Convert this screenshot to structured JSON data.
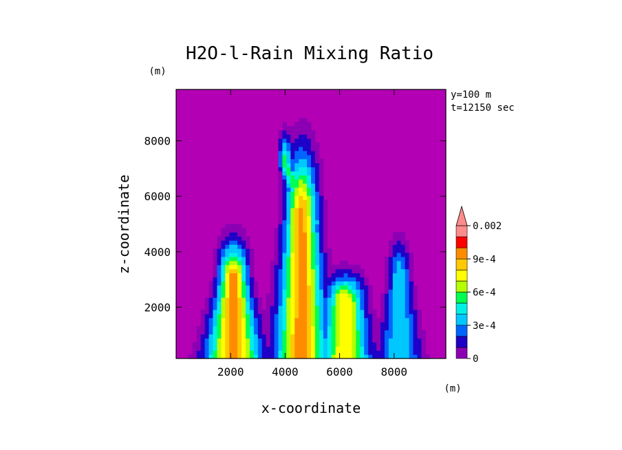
{
  "chart_data": {
    "type": "heatmap",
    "title": "H2O-l-Rain Mixing Ratio",
    "xlabel": "x-coordinate",
    "ylabel": "z-coordinate",
    "x_unit": "(m)",
    "y_unit": "(m)",
    "annotation_lines": [
      "y=100 m",
      "t=12150 sec"
    ],
    "xlim": [
      0,
      9900
    ],
    "ylim": [
      150,
      9850
    ],
    "x_ticks": [
      2000,
      4000,
      6000,
      8000
    ],
    "x_tick_labels": [
      "2000",
      "4000",
      "6000",
      "8000"
    ],
    "y_ticks": [
      2000,
      4000,
      6000,
      8000
    ],
    "y_tick_labels": [
      "2000",
      "4000",
      "6000",
      "8000"
    ],
    "colorbar": {
      "levels": [
        0,
        0.0001,
        0.0002,
        0.0003,
        0.0004,
        0.0005,
        0.0006,
        0.0007,
        0.0008,
        0.0009,
        0.001,
        0.002
      ],
      "tick_values": [
        0,
        0.0003,
        0.0006,
        0.0009,
        0.002
      ],
      "tick_labels": [
        "0",
        "3e-4",
        "6e-4",
        "9e-4",
        "0.002"
      ],
      "colors": [
        "#8c00b4",
        "#1e00c8",
        "#0064ff",
        "#00c8ff",
        "#00f0e6",
        "#00ff50",
        "#b4ff00",
        "#ffff00",
        "#ffc800",
        "#ff8c00",
        "#ff0000",
        "#ff8c8c"
      ],
      "extend": "max",
      "placement": "right"
    },
    "field": {
      "background": "#b400b4",
      "plumes": [
        {
          "x": 2100,
          "z_base": 150,
          "z_top": 3000,
          "w_base": 1800,
          "w_top": 900,
          "lean": 0,
          "peak": 0.00095
        },
        {
          "x": 4600,
          "z_base": 150,
          "z_top": 5200,
          "w_base": 1700,
          "w_top": 1000,
          "lean": 0,
          "peak": 0.00095
        },
        {
          "x": 6200,
          "z_base": 150,
          "z_top": 2200,
          "w_base": 1600,
          "w_top": 1200,
          "lean": 0,
          "peak": 0.0008
        },
        {
          "x": 8200,
          "z_base": 150,
          "z_top": 3000,
          "w_base": 1400,
          "w_top": 700,
          "lean": 0,
          "peak": 0.0004
        },
        {
          "x": 4900,
          "z_base": 5000,
          "z_top": 7200,
          "w_base": 900,
          "w_top": 400,
          "lean": -900,
          "peak": 0.00055
        }
      ]
    }
  }
}
